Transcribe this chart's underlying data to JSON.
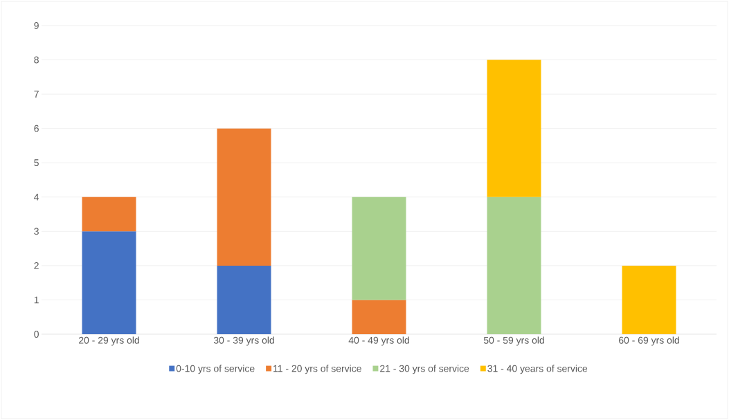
{
  "chart_data": {
    "type": "bar",
    "stacked": true,
    "categories": [
      "20 - 29 yrs old",
      "30 - 39 yrs old",
      "40 - 49 yrs old",
      "50 - 59 yrs old",
      "60 - 69 yrs old"
    ],
    "series": [
      {
        "name": "0-10 yrs of service",
        "color": "#4472c4",
        "values": [
          3,
          2,
          null,
          null,
          null
        ]
      },
      {
        "name": "11 - 20 yrs of service",
        "color": "#ed7d31",
        "values": [
          1,
          4,
          1,
          null,
          null
        ]
      },
      {
        "name": "21 - 30 yrs of service",
        "color": "#a9d18e",
        "values": [
          null,
          null,
          3,
          4,
          null
        ]
      },
      {
        "name": "31 - 40 years of service",
        "color": "#ffc000",
        "values": [
          null,
          null,
          null,
          4,
          2
        ]
      }
    ],
    "ylim": [
      0,
      9
    ],
    "yticks": [
      0,
      1,
      2,
      3,
      4,
      5,
      6,
      7,
      8,
      9
    ],
    "grid": "y",
    "legend": "bottom"
  }
}
